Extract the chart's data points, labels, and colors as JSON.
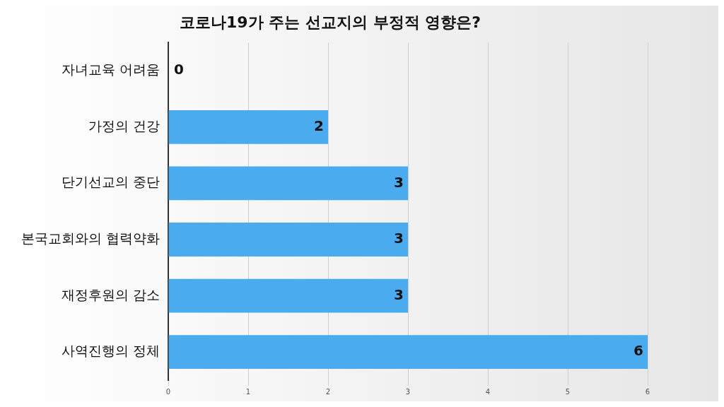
{
  "chart_data": {
    "type": "bar",
    "orientation": "horizontal",
    "title": "코로나19가 주는 선교지의 부정적 영향은?",
    "categories": [
      "자녀교육 어려움",
      "가정의 건강",
      "단기선교의 중단",
      "본국교회와의 협력약화",
      "재정후원의 감소",
      "사역진행의 정체"
    ],
    "values": [
      0,
      2,
      3,
      3,
      3,
      6
    ],
    "color": "#4aabef",
    "xlim": [
      0,
      6
    ],
    "xticks": [
      0,
      1,
      2,
      3,
      4,
      5,
      6
    ],
    "grid": "x",
    "data_labels": true
  }
}
